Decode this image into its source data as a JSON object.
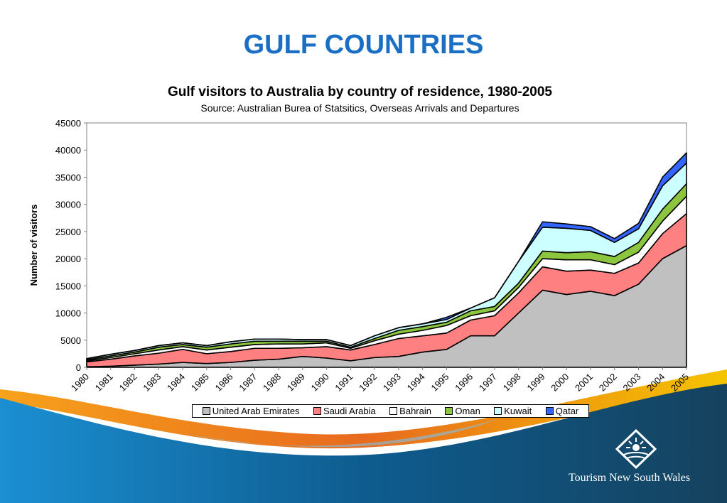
{
  "slide": {
    "title": "GULF COUNTRIES",
    "brand": "Tourism New South Wales"
  },
  "chart_data": {
    "type": "area",
    "stacked": true,
    "title": "Gulf visitors to Australia by country of residence, 1980-2005",
    "subtitle": "Source: Australian Burea of Statsitics, Overseas Arrivals and Departures",
    "xlabel": "",
    "ylabel": "Number of visitors",
    "ylim": [
      0,
      45000
    ],
    "yticks": [
      0,
      5000,
      10000,
      15000,
      20000,
      25000,
      30000,
      35000,
      40000,
      45000
    ],
    "categories": [
      "1980",
      "1981",
      "1982",
      "1983",
      "1984",
      "1985",
      "1986",
      "1987",
      "1988",
      "1989",
      "1990",
      "1991",
      "1992",
      "1993",
      "1994",
      "1995",
      "1996",
      "1997",
      "1998",
      "1999",
      "2000",
      "2001",
      "2002",
      "2003",
      "2004",
      "2005"
    ],
    "grid": false,
    "legend": "bottom",
    "series": [
      {
        "name": "United Arab Emirates",
        "color": "#c0c0c0",
        "values": [
          100,
          200,
          400,
          600,
          900,
          700,
          900,
          1300,
          1500,
          2000,
          1700,
          1200,
          1800,
          2000,
          2800,
          3300,
          5800,
          5800,
          10000,
          14200,
          13400,
          14000,
          13200,
          15300,
          20000,
          22400
        ]
      },
      {
        "name": "Saudi Arabia",
        "color": "#ff8080",
        "values": [
          900,
          1300,
          1700,
          2000,
          2400,
          1800,
          2000,
          2200,
          2000,
          1600,
          2100,
          2000,
          2400,
          3300,
          3000,
          3000,
          2900,
          3700,
          3700,
          4300,
          4300,
          3900,
          4100,
          3900,
          4600,
          5900
        ]
      },
      {
        "name": "Bahrain",
        "color": "#ffffff",
        "values": [
          200,
          300,
          400,
          600,
          500,
          700,
          800,
          700,
          800,
          700,
          700,
          300,
          700,
          800,
          1000,
          1400,
          800,
          900,
          1000,
          1500,
          2100,
          1900,
          1600,
          2000,
          2300,
          3200
        ]
      },
      {
        "name": "Oman",
        "color": "#8cc63f",
        "values": [
          200,
          300,
          300,
          500,
          400,
          500,
          600,
          600,
          500,
          500,
          300,
          200,
          400,
          700,
          700,
          600,
          900,
          800,
          800,
          1400,
          1300,
          1500,
          1500,
          1800,
          2200,
          2300
        ]
      },
      {
        "name": "Kuwait",
        "color": "#ccffff",
        "values": [
          200,
          300,
          300,
          300,
          300,
          300,
          400,
          400,
          400,
          300,
          300,
          300,
          500,
          500,
          500,
          500,
          500,
          1600,
          4000,
          4400,
          4500,
          3900,
          2600,
          2500,
          4300,
          3800
        ]
      },
      {
        "name": "Qatar",
        "color": "#3366ff",
        "values": [
          0,
          0,
          0,
          0,
          0,
          0,
          0,
          0,
          0,
          0,
          0,
          0,
          0,
          0,
          0,
          400,
          0,
          0,
          0,
          1000,
          800,
          700,
          700,
          1000,
          1600,
          1900
        ]
      }
    ]
  }
}
